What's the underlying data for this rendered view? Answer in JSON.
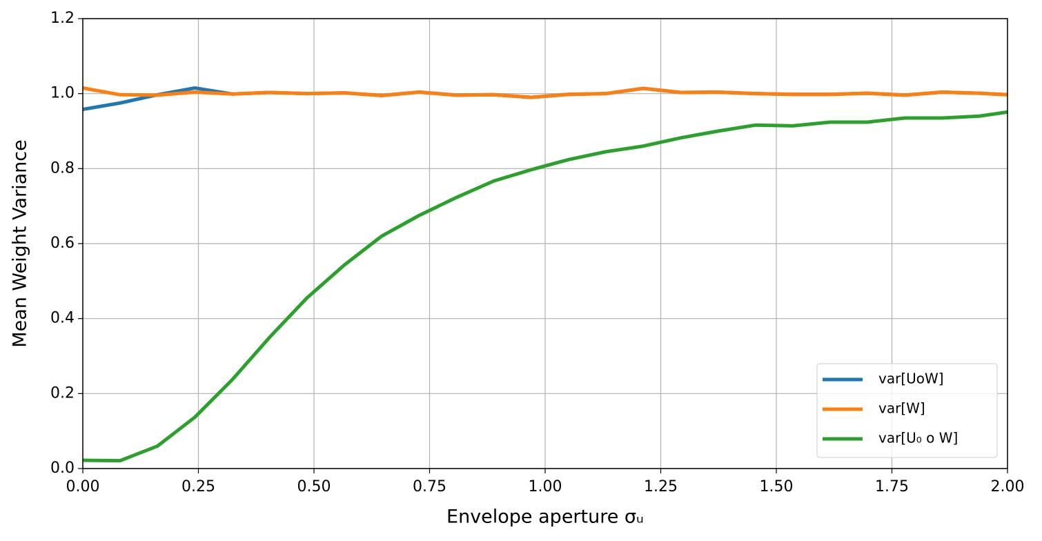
{
  "chart_data": {
    "type": "line",
    "xlabel": "Envelope aperture σᵤ",
    "ylabel": "Mean Weight Variance",
    "x": [
      0,
      0.0808,
      0.1616,
      0.2424,
      0.3232,
      0.404,
      0.4848,
      0.5657,
      0.6465,
      0.7273,
      0.8081,
      0.8889,
      0.9697,
      1.0505,
      1.1313,
      1.2121,
      1.2929,
      1.3737,
      1.4545,
      1.5354,
      1.6162,
      1.697,
      1.7778,
      1.8586,
      1.9394,
      2.0
    ],
    "series": [
      {
        "name": "var[UoW]",
        "color": "#1f77b4",
        "values": [
          0.958,
          0.975,
          0.997,
          1.015,
          0.999,
          1.003,
          1.0,
          1.002,
          0.995,
          1.004,
          0.996,
          0.997,
          0.99,
          0.998,
          1.0,
          1.014,
          1.003,
          1.004,
          1.0,
          0.998,
          0.998,
          1.001,
          0.996,
          1.004,
          1.001,
          0.997
        ]
      },
      {
        "name": "var[W]",
        "color": "#ff7f0e",
        "values": [
          1.015,
          0.997,
          0.996,
          1.004,
          0.999,
          1.003,
          1.0,
          1.002,
          0.995,
          1.004,
          0.996,
          0.997,
          0.99,
          0.998,
          1.0,
          1.014,
          1.003,
          1.004,
          1.0,
          0.998,
          0.998,
          1.001,
          0.996,
          1.004,
          1.001,
          0.997
        ]
      },
      {
        "name": "var[U₀ o W]",
        "color": "#2ca02c",
        "values": [
          0.022,
          0.021,
          0.06,
          0.137,
          0.237,
          0.35,
          0.455,
          0.543,
          0.62,
          0.675,
          0.723,
          0.767,
          0.797,
          0.824,
          0.845,
          0.86,
          0.882,
          0.9,
          0.916,
          0.914,
          0.924,
          0.924,
          0.935,
          0.935,
          0.94,
          0.951
        ]
      }
    ],
    "xlim": [
      0,
      2
    ],
    "ylim": [
      0,
      1.2
    ],
    "xticks": [
      {
        "value": 0,
        "label": "0.00"
      },
      {
        "value": 0.25,
        "label": "0.25"
      },
      {
        "value": 0.5,
        "label": "0.50"
      },
      {
        "value": 0.75,
        "label": "0.75"
      },
      {
        "value": 1,
        "label": "1.00"
      },
      {
        "value": 1.25,
        "label": "1.25"
      },
      {
        "value": 1.5,
        "label": "1.50"
      },
      {
        "value": 1.75,
        "label": "1.75"
      },
      {
        "value": 2,
        "label": "2.00"
      }
    ],
    "yticks": [
      {
        "value": 0,
        "label": "0.0"
      },
      {
        "value": 0.2,
        "label": "0.2"
      },
      {
        "value": 0.4,
        "label": "0.4"
      },
      {
        "value": 0.6,
        "label": "0.6"
      },
      {
        "value": 0.8,
        "label": "0.8"
      },
      {
        "value": 1,
        "label": "1.0"
      },
      {
        "value": 1.2,
        "label": "1.2"
      }
    ],
    "grid": true,
    "legend": "lower right"
  }
}
